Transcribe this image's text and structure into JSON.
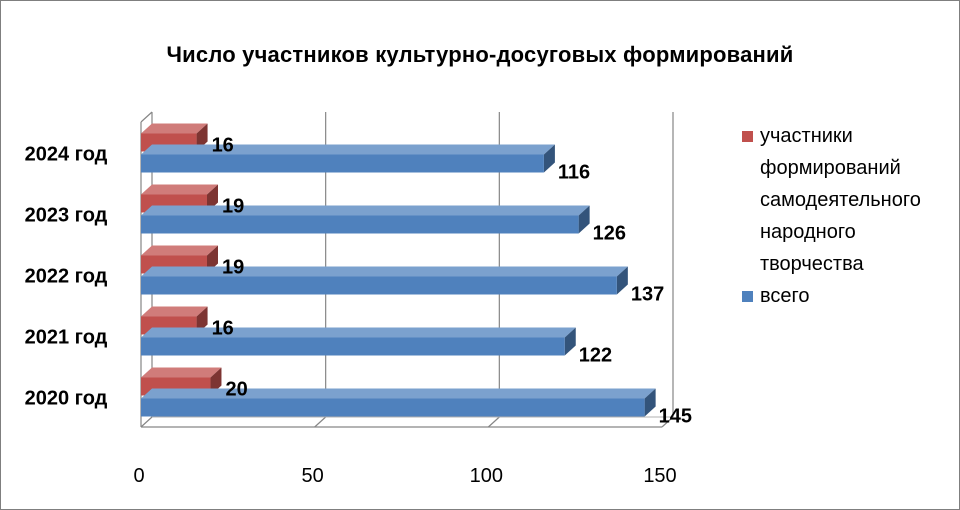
{
  "chart_data": {
    "type": "bar",
    "orientation": "horizontal",
    "title": "Число участников культурно-досуговых формирований",
    "categories": [
      "2024 год",
      "2023 год",
      "2022 год",
      "2021 год",
      "2020 год"
    ],
    "series": [
      {
        "name": "участники формирований самодеятельного народного творчества",
        "values": [
          16,
          19,
          19,
          16,
          20
        ],
        "color": "#c0504d"
      },
      {
        "name": "всего",
        "values": [
          116,
          126,
          137,
          122,
          145
        ],
        "color": "#4f81bd"
      }
    ],
    "xlim": [
      0,
      150
    ],
    "xticks": [
      0,
      50,
      100,
      150
    ],
    "grid": true,
    "legend_position": "right",
    "style": "3d"
  }
}
